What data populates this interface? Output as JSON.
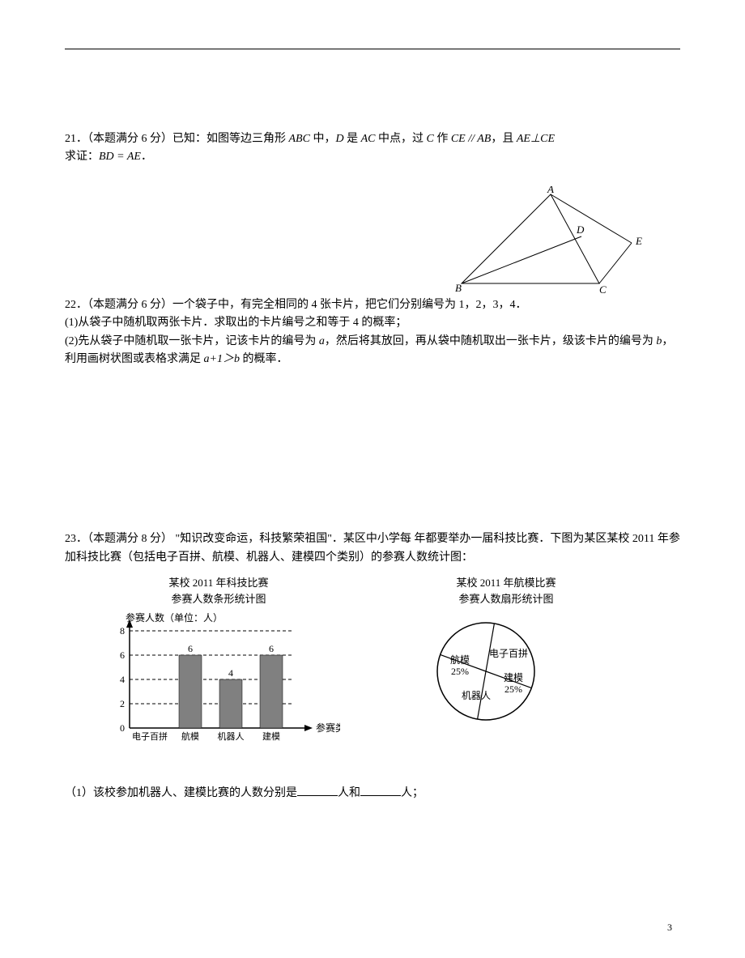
{
  "problem21": {
    "number_prefix": "21．（本题满分 6 分）已知：如图等边三角形 ",
    "t_abc": "ABC",
    "t_mid1": " 中，",
    "t_d": "D",
    "t_is": " 是 ",
    "t_ac": "AC",
    "t_midpoint": " 中点，过 ",
    "t_c": "C",
    "t_make": " 作 ",
    "t_ce": "CE // AB",
    "t_and": "，且 ",
    "t_ae_perp_ce": "AE⊥CE",
    "line2_prefix": "求证：",
    "line2_eq": "BD = AE",
    "line2_suffix": "．",
    "triangle": {
      "A": [
        120,
        0
      ],
      "B": [
        0,
        120
      ],
      "C": [
        180,
        120
      ],
      "D": [
        158,
        62
      ],
      "E": [
        220,
        70
      ],
      "stroke": "#000000"
    }
  },
  "problem22": {
    "line1": "22．（本题满分 6 分）一个袋子中，有完全相同的 4 张卡片，把它们分别编号为 1，2，3，4．",
    "line2": "(1)从袋子中随机取两张卡片．求取出的卡片编号之和等于 4 的概率；",
    "line3_a": "(2)先从袋子中随机取一张卡片，记该卡片的编号为 ",
    "line3_a_var": "a",
    "line3_b": "，然后将其放回，再从袋中随机取出一张卡片，级该卡片的编号为 ",
    "line3_b_var": "b",
    "line3_c": "，利用画树状图或表格求满足 ",
    "line3_ineq": "a+1＞b",
    "line3_d": " 的概率．"
  },
  "problem23": {
    "intro1": "23．（本题满分 8 分）  \"知识改变命运，科技繁荣祖国\"．某区中小学每 年都要举办一届科技比赛．下图为某区某校 2011 年参加科技比赛（包括电子百拼、航模、机器人、建模四个类别）的参赛人数统计图：",
    "bar_chart": {
      "title1": "某校 2011 年科技比赛",
      "title2": "参赛人数条形统计图",
      "ylabel": "参赛人数（单位：人）",
      "xlabel": "参赛类别",
      "categories": [
        "电子百拼",
        "航模",
        "机器人",
        "建模"
      ],
      "values": [
        null,
        6,
        4,
        6
      ],
      "value_labels": [
        "",
        "6",
        "4",
        "6"
      ],
      "yticks": [
        0,
        2,
        4,
        6,
        8
      ],
      "grid_color": "#000000",
      "bar_color": "#808080",
      "axis_color": "#000000"
    },
    "pie_chart": {
      "title1": "某校 2011 年航模比赛",
      "title2": "参赛人数扇形统计图",
      "slices": [
        {
          "label": "电子百拼",
          "pct": ""
        },
        {
          "label": "航模",
          "pct": "25%"
        },
        {
          "label": "机器人",
          "pct": ""
        },
        {
          "label": "建模",
          "pct": "25%"
        }
      ],
      "stroke": "#000000",
      "fill": "#ffffff"
    },
    "q1_a": "（1）该校参加机器人、建模比赛的人数分别是",
    "q1_b": "人和",
    "q1_c": "人；"
  },
  "page_number": "3"
}
